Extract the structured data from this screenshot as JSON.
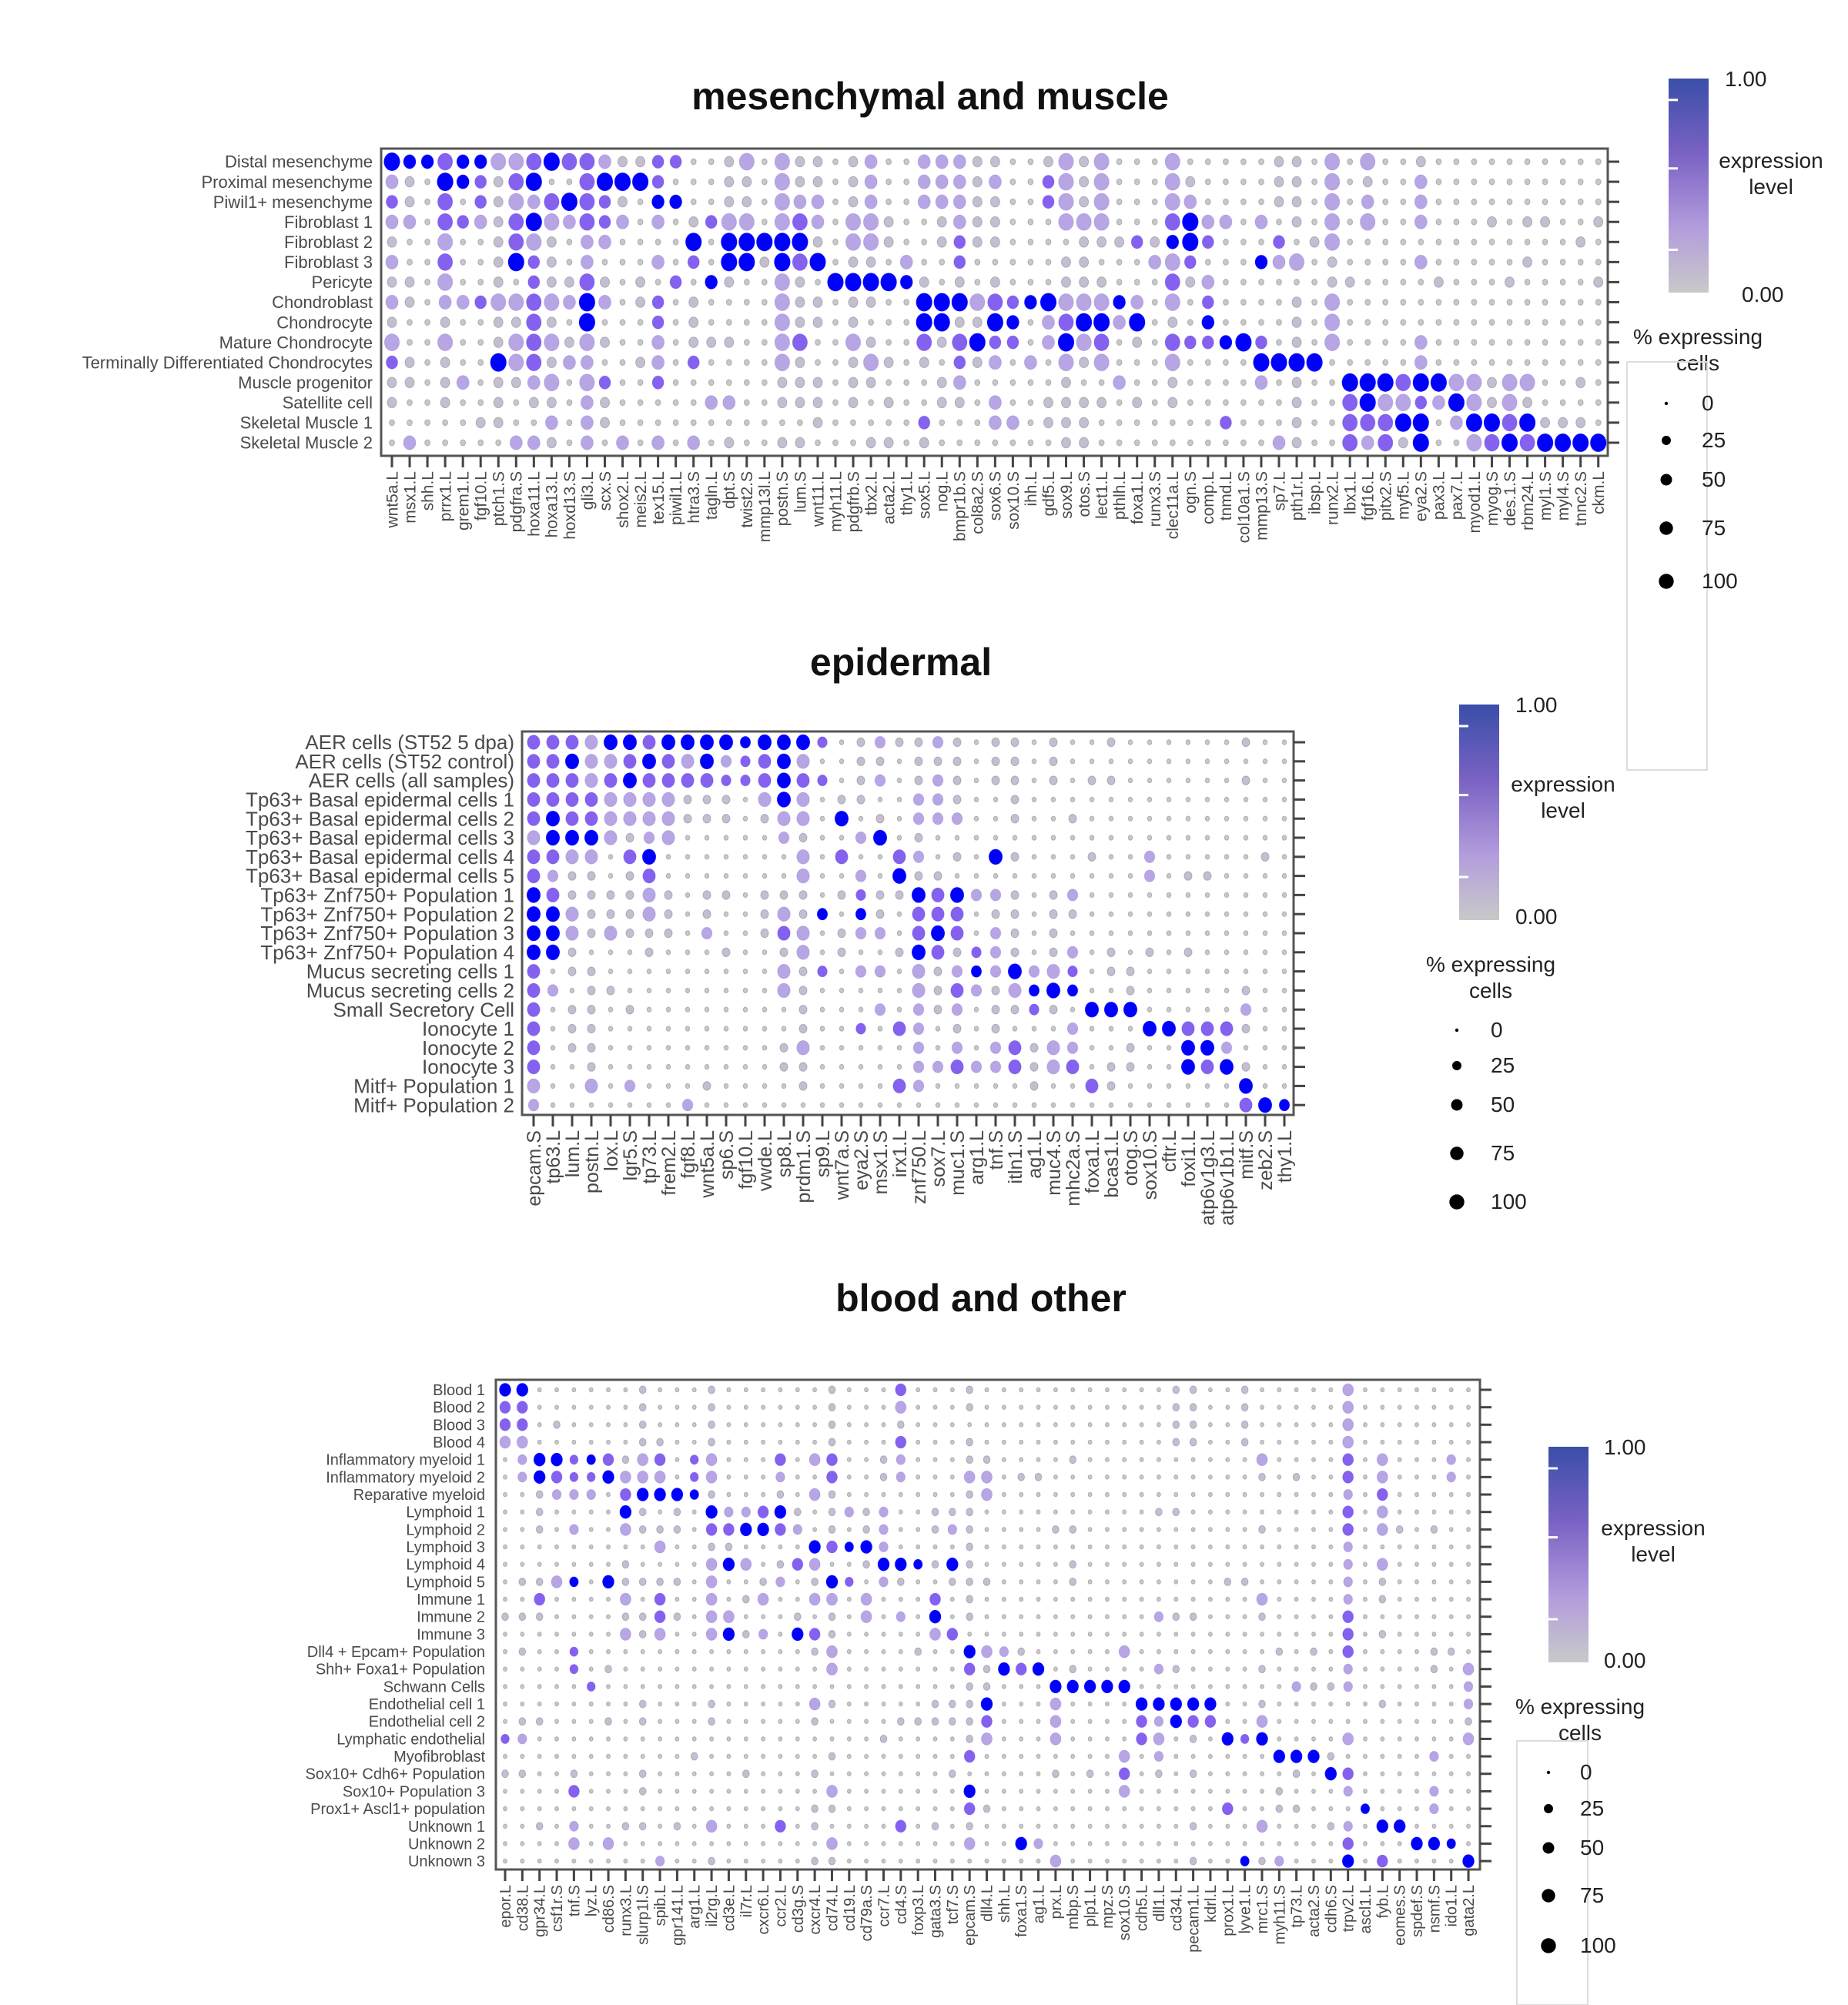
{
  "cell_code_legend": {
    ".": {
      "pct": 1,
      "expr": 0.0
    },
    "o": {
      "pct": 12,
      "expr": 0.1
    },
    "l": {
      "pct": 30,
      "expr": 0.35
    },
    "L": {
      "pct": 50,
      "expr": 0.35
    },
    "m": {
      "pct": 25,
      "expr": 0.65
    },
    "M": {
      "pct": 50,
      "expr": 0.65
    },
    "b": {
      "pct": 30,
      "expr": 1.0
    },
    "B": {
      "pct": 60,
      "expr": 1.0
    }
  },
  "colors": {
    "low": "#c8c8c8",
    "mid": "#b5a0e8",
    "high_mid": "#7a55f0",
    "high": "#0000ff",
    "bar_top": "#3a4ea8"
  },
  "chart_data": [
    {
      "type": "scatter",
      "subtype": "dotplot",
      "title": "mesenchymal and muscle",
      "rows": [
        "Distal mesenchyme",
        "Proximal mesenchyme",
        "Piwil1+ mesenchyme",
        "Fibroblast 1",
        "Fibroblast 2",
        "Fibroblast 3",
        "Pericyte",
        "Chondroblast",
        "Chondrocyte",
        "Mature Chondrocyte",
        "Terminally Differentiated Chondrocytes",
        "Muscle progenitor",
        "Satellite cell",
        "Skeletal Muscle 1",
        "Skeletal Muscle 2"
      ],
      "genes": [
        "wnt5a.L",
        "msx1.L",
        "shh.L",
        "prrx1.L",
        "grem1.L",
        "fgf10.L",
        "ptch1.S",
        "pdgfra.S",
        "hoxa11.L",
        "hoxa13.L",
        "hoxd13.S",
        "gli3.L",
        "scx.S",
        "shox2.L",
        "meis2.L",
        "tex15.L",
        "piwil1.L",
        "htra3.S",
        "tagln.L",
        "dpt.S",
        "twist2.S",
        "mmp13l.L",
        "postn.S",
        "lum.S",
        "wnt11.L",
        "myh11.L",
        "pdgfrb.S",
        "tbx2.L",
        "acta2.L",
        "thy1.L",
        "sox5.L",
        "nog.L",
        "bmpr1b.S",
        "col8a2.S",
        "sox6.S",
        "sox10.S",
        "ihh.L",
        "gdf5.L",
        "sox9.L",
        "otos.S",
        "lect1.L",
        "pthlh.L",
        "foxa1.L",
        "runx3.S",
        "clec11a.L",
        "ogn.S",
        "comp.L",
        "tnmd.L",
        "col10a1.S",
        "mmp13.S",
        "sp7.L",
        "pth1r.L",
        "ibsp.L",
        "runx2.L",
        "lbx1.L",
        "fgf16.L",
        "pitx2.S",
        "myf5.L",
        "eya2.S",
        "pax3.L",
        "pax7.L",
        "myod1.L",
        "myog.S",
        "des.1.S",
        "rbm24.L",
        "myl1.S",
        "myl4.S",
        "tnnc2.S",
        "ckm.L"
      ],
      "cells": [
        "BbbMbbLLMBMMloomm..oL.Loo.ol..lllo",
        "lo.BbmoMB..MBBBm...oo.Loo.ol..lllo",
        "mo.M.moLlMBMmo.bb..oo.Lll.ol..lllo",
        "ll.MmloMBLlMml.l.omLL.LMl.LLo..olo",
        "o..L..oMLo.ll....B.BBBBBo.LLo..omo",
        "l..M..oBmo.l...l.m.BBoBMB.oo.l..m.",
        "oo.L..o.mooMo.o.m.bo..Lo.BBBBbo.o.",
        "lo.llmLLMLlBl.om.o....Loo.oo..BBBL",
        "o..o..ooMo.B...m.o....Loo.o...BBoo",
        "L..L..oLMLoLo..l.ooo..LM..Lo..MoMB",
        "mo.o..BLMoll..ol.m....Lo..oLo.o.mo",
        "oo.ol.oolL.Lm..m......ooo.oo...ol.",
        "o..o..o.oo.lo.....ll..ooo.o.o..oo.",
        ".....oo..l.lo...........o.....m...",
        ".l.....llo.l.l.l.l.o..oo...oo.o..."
      ],
      "cells_right": [
        "o..oLoL...L.....oo.L.L..o..........",
        "l..mLoL...Lo....oo.L.o..l..........",
        "o..mLoL...Ll....oo.L.l..l..........",
        "o...LLL...MBll.l.o.L.L..l...o.oo..o",
        "o....ooomobBm...m.oL.............o.",
        "....oo...lLm...blL.o....l.....o....",
        "o...ooo...Mol......oo....o...o....o",
        "MmbBLLLbl.L.m....o.L...............",
        "Bb.lMBBlB.o.b....o.L...............",
        "mm.lBLM.o.MmmbBm.o.L....l..........",
        "l.l.LoL...L....BBBB.....l..........",
        "....o..l..o....l.o..BBBMBBLLoLL..o.",
        "l..oooo.o.o......o..MBLLmlBLoLo....",
        "ll.ooo.......m...o..MMMBB.lBBMBooo.",
        "....oo..........lo..MlMoB..LMBMBBBB"
      ],
      "legend": {
        "color_title": [
          "expression",
          "level"
        ],
        "color_max": "1.00",
        "color_min": "0.00",
        "size_title": [
          "% expressing",
          "cells"
        ],
        "size_values": [
          0,
          25,
          50,
          75,
          100
        ],
        "size_labels": [
          "0",
          "25",
          "50",
          "75",
          "100"
        ],
        "placement": "right"
      }
    },
    {
      "type": "scatter",
      "subtype": "dotplot",
      "title": "epidermal",
      "rows": [
        "AER cells (ST52 5 dpa)",
        "AER cells (ST52 control)",
        "AER cells (all samples)",
        "Tp63+ Basal epidermal cells 1",
        "Tp63+ Basal epidermal cells 2",
        "Tp63+ Basal epidermal cells 3",
        "Tp63+ Basal epidermal cells 4",
        "Tp63+ Basal epidermal cells 5",
        "Tp63+ Znf750+ Population 1",
        "Tp63+ Znf750+ Population 2",
        "Tp63+ Znf750+ Population 3",
        "Tp63+ Znf750+ Population 4",
        "Mucus secreting cells 1",
        "Mucus secreting cells 2",
        "Small Secretory Cell",
        "Ionocyte  1",
        "Ionocyte  2",
        "Ionocyte  3",
        "Mitf+ Population 1",
        "Mitf+ Population 2"
      ],
      "genes": [
        "epcam.S",
        "tp63.L",
        "lum.L",
        "postn.L",
        "lox.L",
        "lgr5.S",
        "tp73.L",
        "frem2.L",
        "fgf8.L",
        "wnt5a.L",
        "sp6.S",
        "fgf10.L",
        "vwde.L",
        "sp8.L",
        "prdm1.S",
        "sp9.L",
        "wnt7a.S",
        "eya2.S",
        "msx1.S",
        "irx1.L",
        "znf750.L",
        "sox7.L",
        "muc1.S",
        "arg1.L",
        "tnf.S",
        "itln1.S",
        "ag1.L",
        "muc4.S",
        "mhc2a.S",
        "foxa1.L",
        "bcas1.L",
        "otog.S",
        "sox10.S",
        "cftr.L",
        "foxi1.L",
        "atp6v1g3.L",
        "atp6v1b1.L",
        "mitf.S",
        "zeb2.S",
        "thy1.L"
      ],
      "cells": [
        "MMMLBBMBBBBbBBBm.olo",
        "MMBLLMBMLBlmMBL..oo.",
        "MMMLMBMMMMmmMBMm.ol.",
        "MMMMLLLLooo.LBL.oo..",
        "MBMMLLLLooo.oLL.B.o.",
        "LBBBLolL.....lo..lB.",
        "MMLL.MB.......L.M..M",
        "Mloo.oM.......L..l.B",
        "BMooooLo.oo.ooo.omoo",
        "BBLoooLo.o..oLob.bo.",
        "BBLoLooo.l..oML.oll.",
        "BBo...o...o..oL.o..o",
        "M.oo.........Lom.ll.",
        "Ml.oo........Lo.....",
        "M.oo.o........o...l.",
        "M.oo..........o..m.M",
        "M.oo.........oL.....",
        "M..o.........oo.....",
        "L..L.l...o....o....M",
        "l.......l..........."
      ],
      "cells_right": [
        "olo.oo.o..o......o..",
        "ooo.oo.o............",
        "olo.oo.o.oo......o..",
        "llo..o..............",
        "lll..o..o...........",
        "o...................",
        "l.o.Bo...o..l.....o.",
        "oo..........l.oo....",
        "BMBllo.ol...........",
        "MMM.oo.oo...........",
        "MBM.lo.o............",
        "BMomlo.ol.o.o.o.....",
        "LolblBlLm.oo........",
        "LoMloLbBb..o.....o..",
        "lol.oomo.BBB.....l..",
        "l.o.o...l...BBMMMo..",
        "l.l.lMoLl..o..BBl...",
        "llMllMoLM.oo..BMBo..",
        "l.....o..Mo......B..",
        ".................MBb"
      ],
      "legend": {
        "color_title": [
          "expression",
          "level"
        ],
        "color_max": "1.00",
        "color_min": "0.00",
        "size_title": [
          "% expressing",
          "cells"
        ],
        "size_values": [
          0,
          25,
          50,
          75,
          100
        ],
        "size_labels": [
          "0",
          "25",
          "50",
          "75",
          "100"
        ],
        "placement": "right"
      }
    },
    {
      "type": "scatter",
      "subtype": "dotplot",
      "title": "blood and other",
      "rows": [
        "Blood 1",
        "Blood 2",
        "Blood 3",
        "Blood 4",
        "Inflammatory myeloid 1",
        "Inflammatory myeloid 2",
        "Reparative myeloid",
        "Lymphoid 1",
        "Lymphoid 2",
        "Lymphoid 3",
        "Lymphoid 4",
        "Lymphoid 5",
        "Immune 1",
        "Immune 2",
        "Immune 3",
        "Dll4 + Epcam+ Population",
        "Shh+ Foxa1+ Population",
        "Schwann Cells",
        "Endothelial cell 1",
        "Endothelial cell 2",
        "Lymphatic endothelial",
        "Myofibroblast",
        "Sox10+ Cdh6+ Population",
        "Sox10+ Population 3",
        "Prox1+ Ascl1+ population",
        "Unknown 1",
        "Unknown 2",
        "Unknown 3"
      ],
      "genes": [
        "epor.L",
        "cd38.L",
        "gpr34.L",
        "csf1r.S",
        "tnf.S",
        "lyz.L",
        "cd86.S",
        "runx3.L",
        "slurp1l.S",
        "spib.L",
        "gpr141.L",
        "arg1.L",
        "il2rg.L",
        "cd3e.L",
        "il7r.L",
        "cxcr6.L",
        "ccr2.L",
        "cd3g.S",
        "cxcr4.L",
        "cd74.L",
        "cd19.L",
        "cd79a.S",
        "ccr7.L",
        "cd4.S",
        "foxp3.L",
        "gata3.S",
        "tcf7.S",
        "epcam.S",
        "dll4.L",
        "shh.L",
        "foxa1.S",
        "ag1.L",
        "prx.L",
        "mbp.S",
        "plp1.L",
        "mpz.S",
        "sox10.S",
        "cdh5.L",
        "dll1.L",
        "cd34.L",
        "pecam1.L",
        "kdrl.L",
        "prox1.L",
        "lyve1.L",
        "mrc1.S",
        "myh11.S",
        "tp73.L",
        "acta2.S",
        "cdh6.S",
        "trpv2.L",
        "ascl1.L",
        "fyb.L",
        "eomes.S",
        "spdef.S",
        "nsmf.S",
        "ido1.L",
        "gata2.L"
      ],
      "cells": [
        "BB......o...o......o...M...o",
        "MM......o...o......o...L...o",
        "MM.o....o...o......o...o....",
        "LL......oo..o......o...M...o",
        ".lBBmbMoLM.mL...M.LM..ol...o",
        ".lBMmmBLLL.mL...l..M..ol...L",
        "..olll.MBBBbo...o.Lo.......o",
        "..o....Bo.o.BllMBo.olol..ooo",
        "..o.l..Looo.MMBBMl.o.ol..olo",
        ".........L..oo....BMbBl....o",
        ".......o....LBL.oML..oBBboBo",
        ".ooLb.Boooo.L..ol.oBm.lo..oo",
        "..M....L.M..L.oL..LL.L...M.o",
        "ooo....ooMo.LL...o.o.L.l.B.o",
        ".......LoL..LBol.BMo.....LM.",
        ".o..m.............oL....o..B",
        "....m.o............L.......M",
        ".....m.....................o",
        "........o...o.....Lo.....ooo",
        ".oo...o.o...o.....o....ooooo",
        "ml....................o....o",
        "...........o.......o.......M",
        "oo..o...o.....o...o.......o.",
        "....M...o..........L.......B",
        "..................oo.......M",
        "..o.l..oo.o.L...M.o....M.o.o",
        "....L.L............L.......L",
        ".........l..o.....oo........"
      ],
      "cells_right": [
        "...........oo..o.....L.......",
        "...........oo..o.....L.......",
        "...........oo..o.....L.......",
        "...........oo..o.....L.......",
        "o....o..........L....M.L...l.",
        "L.oo............o.o..M.L...l.",
        "L....................l.M.....",
        "..........oo.........M.L.....",
        "....oo..........o....M.Lo.o..",
        ".....................l.......",
        ".....o...............l.L.....",
        "o....o........oo.....l.o.....",
        "................L....l.o.....",
        "..........loo...o....M.......",
        ".....................M.o.....",
        "Llo.....L........o.o.M....oo.",
        "oBMB.o....lo....o....l....o.L",
        "o...BBBBB.........lool......l",
        "B...L....BBBBB..o......o....l",
        "M...L....MlBMM..L...........o",
        "L...L....ML.o.BmB....L......L",
        "........L.l......BBBo.....l..",
        "....o.o.M.o.o.....o.BM.......",
        "........L........o...l....l..",
        "o.............M..oo...b...l..",
        "............o...L...ol.BB....",
        "..Bl.................M...BBb.",
        "....L.......o..bol...B.M....B"
      ],
      "legend": {
        "color_title": [
          "expression",
          "level"
        ],
        "color_max": "1.00",
        "color_min": "0.00",
        "size_title": [
          "% expressing",
          "cells"
        ],
        "size_values": [
          0,
          25,
          50,
          75,
          100
        ],
        "size_labels": [
          "0",
          "25",
          "50",
          "75",
          "100"
        ],
        "placement": "right"
      }
    }
  ]
}
